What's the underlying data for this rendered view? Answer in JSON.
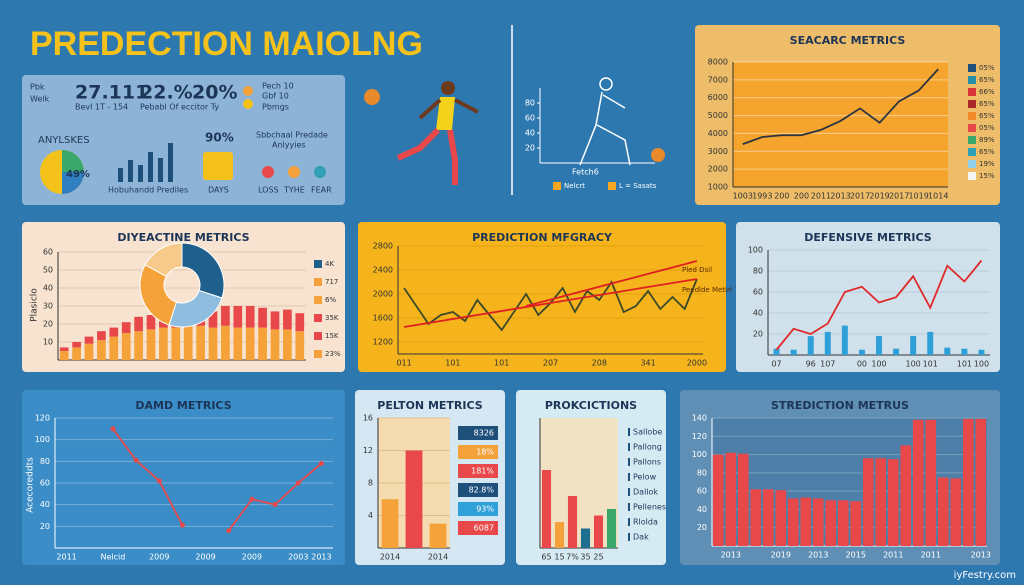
{
  "title": "PREDECTION MAIOLNG",
  "footer": "iyFestry.com",
  "summary": {
    "stat_labels": [
      "Pbk",
      "Welk"
    ],
    "stats": [
      {
        "value": "27.111",
        "note": "Bevl 1T - 154"
      },
      {
        "value": "22.%",
        "note": "Pebabl Of eccitor Ty"
      },
      {
        "value": "20%",
        "note": "Pbmgs"
      }
    ],
    "corner_note": [
      "Pech 10",
      "Gbf 10"
    ],
    "analyses": "ANYLSKES",
    "pie_label": "49%",
    "bars_label": "Hobuhandd Prediles",
    "pct": "90%",
    "days": "DAYS",
    "subtitle": [
      "Sbbchaal Predade",
      "Anlyyies"
    ],
    "icons": [
      "LOSS",
      "TYHE",
      "FEAR"
    ]
  },
  "chart_data": [
    {
      "type": "line",
      "title": "SEACARC METRICS",
      "categories": [
        "1003",
        "1993",
        "200",
        "200",
        "2011",
        "2013",
        "2017",
        "2019",
        "2017",
        "1019",
        "1014"
      ],
      "series": [
        {
          "color": "#2a3440",
          "values": [
            3400,
            3800,
            3900,
            3900,
            4200,
            4700,
            5400,
            4600,
            5800,
            6400,
            7600
          ]
        }
      ],
      "ylim": [
        1000,
        8000
      ],
      "yticks": [
        1000,
        2000,
        3000,
        4000,
        5000,
        6000,
        7000,
        8000
      ],
      "grid": true,
      "legend": [
        {
          "label": "05%",
          "color": "#1f4f7b"
        },
        {
          "label": "65%",
          "color": "#2a8fa8"
        },
        {
          "label": "66%",
          "color": "#d8343a"
        },
        {
          "label": "65%",
          "color": "#a8282c"
        },
        {
          "label": "65%",
          "color": "#f08a2a"
        },
        {
          "label": "05%",
          "color": "#e8484a"
        },
        {
          "label": "89%",
          "color": "#3aa86b"
        },
        {
          "label": "65%",
          "color": "#2fa0b8"
        },
        {
          "label": "19%",
          "color": "#8fd0e8"
        },
        {
          "label": "15%",
          "color": "#f4f4f4"
        }
      ]
    },
    {
      "type": "line",
      "x_label": "Fetch6",
      "series": [
        {
          "name": "Nelcrt",
          "color": "#f5a623",
          "values": []
        },
        {
          "name": "L = Sasats",
          "color": "#f5a623",
          "values": []
        }
      ],
      "ylim": [
        0,
        100
      ],
      "yticks": [
        20,
        40,
        60,
        80
      ]
    },
    {
      "type": "stacked_bar",
      "title": "DIYEACTINE METRICS",
      "y_label": "Plasiclo",
      "series": [
        {
          "color": "#f5a23a",
          "values": [
            5,
            7,
            9,
            11,
            13,
            15,
            16,
            17,
            18,
            18,
            19,
            19,
            18,
            19,
            18,
            18,
            18,
            17,
            17,
            16
          ]
        },
        {
          "color": "#e8484a",
          "values": [
            2,
            3,
            4,
            5,
            5,
            6,
            8,
            8,
            9,
            6,
            5,
            5,
            9,
            11,
            12,
            12,
            11,
            10,
            11,
            10
          ]
        }
      ],
      "ylim": [
        0,
        60
      ],
      "yticks": [
        10,
        20,
        30,
        40,
        50,
        60
      ],
      "grid": true,
      "legend": [
        {
          "label": "4K",
          "color": "#1f5f8b"
        },
        {
          "label": "717",
          "color": "#f5a23a"
        },
        {
          "label": "6%",
          "color": "#f5a23a"
        },
        {
          "label": "35K",
          "color": "#e8484a"
        },
        {
          "label": "15K",
          "color": "#e8484a"
        },
        {
          "label": "23%",
          "color": "#f5a23a"
        }
      ]
    },
    {
      "type": "pie",
      "values": [
        30,
        25,
        28,
        17
      ],
      "colors": [
        "#1f5f8b",
        "#8fbde0",
        "#f5a23a",
        "#f7c98a"
      ]
    },
    {
      "type": "line",
      "title": "PREDICTION MFGRACY",
      "categories": [
        "011",
        null,
        null,
        null,
        "101",
        null,
        null,
        null,
        "101",
        null,
        null,
        null,
        "207",
        null,
        null,
        null,
        "208",
        null,
        null,
        null,
        "341",
        null,
        null,
        null,
        "2000"
      ],
      "series": [
        {
          "color": "#3d4a2a",
          "values": [
            2100,
            1800,
            1500,
            1650,
            1700,
            1550,
            1900,
            1650,
            1400,
            1700,
            2000,
            1650,
            1850,
            2100,
            1700,
            2050,
            1900,
            2200,
            1700,
            1800,
            2050,
            1750,
            1950,
            1750,
            2250
          ]
        },
        {
          "type": "trend",
          "color": "#e02020",
          "values": [
            1450,
            null,
            null,
            null,
            null,
            null,
            null,
            null,
            null,
            null,
            null,
            null,
            null,
            null,
            null,
            null,
            null,
            null,
            null,
            null,
            null,
            null,
            null,
            null,
            2250
          ]
        },
        {
          "type": "trend",
          "color": "#e02020",
          "values": [
            null,
            null,
            null,
            null,
            null,
            null,
            null,
            null,
            null,
            null,
            1800,
            null,
            null,
            null,
            null,
            null,
            null,
            null,
            null,
            null,
            null,
            null,
            null,
            null,
            2550
          ]
        }
      ],
      "ylim": [
        1000,
        2800
      ],
      "yticks": [
        1200,
        1600,
        2000,
        2400,
        2800
      ],
      "grid": true,
      "annotations": [
        "Pled Dsil",
        "Peedlde Metirl"
      ]
    },
    {
      "type": "combo",
      "title": "DEFENSIVE METRICS",
      "categories": [
        "07",
        null,
        "96",
        "107",
        null,
        "00",
        "100",
        null,
        "100",
        "101",
        null,
        "101",
        "100"
      ],
      "series": [
        {
          "type": "bar",
          "color": "#2f9fd8",
          "values": [
            6,
            5,
            18,
            22,
            28,
            5,
            18,
            6,
            18,
            22,
            7,
            6,
            5
          ]
        },
        {
          "type": "line",
          "color": "#e02a2a",
          "values": [
            5,
            25,
            20,
            30,
            60,
            65,
            50,
            55,
            75,
            45,
            85,
            70,
            90
          ]
        }
      ],
      "ylim": [
        0,
        100
      ],
      "yticks": [
        20,
        40,
        60,
        80,
        100
      ],
      "grid": true
    },
    {
      "type": "line",
      "title": "DAMD METRICS",
      "y_label": "Acecoreddts",
      "markers": true,
      "categories": [
        "2011",
        null,
        "Nelcid",
        null,
        "2009",
        null,
        "2009",
        null,
        "2009",
        null,
        "2003",
        "2013"
      ],
      "series": [
        {
          "color": "#e8484a",
          "values": [
            null,
            null,
            110,
            81,
            62,
            21,
            null,
            16,
            45,
            40,
            60,
            78
          ]
        }
      ],
      "ylim": [
        0,
        120
      ],
      "yticks": [
        20,
        40,
        60,
        80,
        100,
        120
      ],
      "grid": true
    },
    {
      "type": "bar",
      "title": "PELTON METRICS",
      "categories": [
        "2014",
        null,
        "2014"
      ],
      "values": [
        6,
        12,
        3
      ],
      "colors": [
        "#f5a23a",
        "#e8484a",
        "#f5a23a"
      ],
      "ylim": [
        0,
        16
      ],
      "yticks": [
        4,
        8,
        12,
        16
      ],
      "grid": true,
      "legend": [
        {
          "label": "8326",
          "color": "#1f4f7b"
        },
        {
          "label": "18%",
          "color": "#f5a23a"
        },
        {
          "label": "181%",
          "color": "#e8484a"
        },
        {
          "label": "82.8%",
          "color": "#1f4f7b"
        },
        {
          "label": "93%",
          "color": "#2fa0d8"
        },
        {
          "label": "6087",
          "color": "#e8484a"
        }
      ]
    },
    {
      "type": "bar",
      "title": "PROKCICTIONS",
      "categories": [
        "65",
        "15",
        "7%",
        "35",
        "25",
        null
      ],
      "values": [
        6,
        2,
        4,
        1.5,
        2.5,
        3
      ],
      "colors": [
        "#e8484a",
        "#f5a23a",
        "#e8484a",
        "#1d6f8f",
        "#e8484a",
        "#3aa86b"
      ],
      "ylim": [
        0,
        10
      ],
      "legend": [
        {
          "label": "Sallobe",
          "color": "#1f4f7b"
        },
        {
          "label": "Pallong",
          "color": "#1f4f7b"
        },
        {
          "label": "Pallons",
          "color": "#1f4f7b"
        },
        {
          "label": "Pelow",
          "color": "#1f4f7b"
        },
        {
          "label": "Dallok",
          "color": "#1f4f7b"
        },
        {
          "label": "Pellenes",
          "color": "#1f4f7b"
        },
        {
          "label": "Rlolda",
          "color": "#1f4f7b"
        },
        {
          "label": "Dak",
          "color": "#1f4f7b"
        }
      ]
    },
    {
      "type": "bar",
      "title": "STREDICTION METRUS",
      "categories": [
        null,
        "2013",
        null,
        null,
        null,
        "2019",
        null,
        null,
        "2013",
        null,
        null,
        "2015",
        null,
        null,
        "2011",
        null,
        null,
        "2011",
        null,
        null,
        null,
        "2013"
      ],
      "values": [
        100,
        102,
        101,
        62,
        62,
        61,
        52,
        53,
        52,
        50,
        50,
        49,
        96,
        96,
        95,
        110,
        138,
        138,
        75,
        74,
        139,
        139
      ],
      "color": "#e8484a",
      "ylim": [
        0,
        140
      ],
      "yticks": [
        20,
        40,
        60,
        80,
        100,
        120,
        140
      ],
      "grid": true
    }
  ]
}
